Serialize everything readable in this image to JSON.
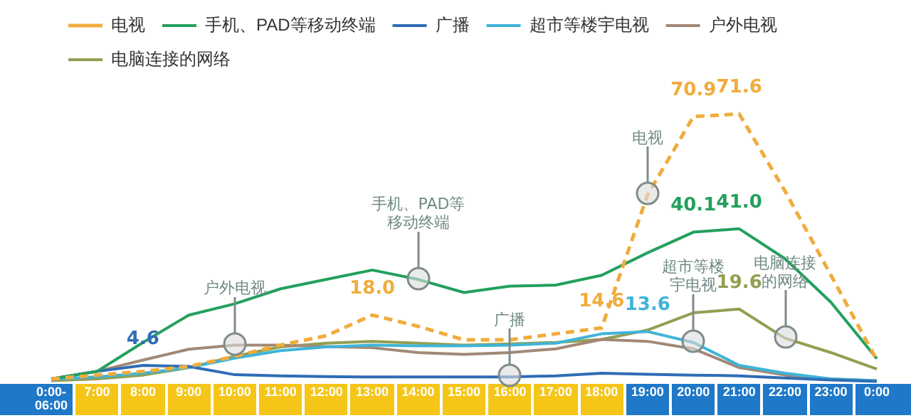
{
  "chart_data": {
    "type": "line",
    "categories": [
      "0:00- 06:00",
      "7:00",
      "8:00",
      "9:00",
      "10:00",
      "11:00",
      "12:00",
      "13:00",
      "14:00",
      "15:00",
      "16:00",
      "17:00",
      "18:00",
      "19:00",
      "20:00",
      "21:00",
      "22:00",
      "23:00",
      "0:00"
    ],
    "series": [
      {
        "name": "电视",
        "color": "#f0ac3c",
        "line_style": "dashed",
        "values": [
          1,
          2,
          3,
          4.3,
          7,
          10,
          12.5,
          18.0,
          15,
          11.4,
          11.4,
          13,
          14.6,
          50,
          70.9,
          71.6,
          51,
          28.6,
          6
        ],
        "value_labels": [
          null,
          null,
          null,
          null,
          null,
          null,
          null,
          "18.0",
          null,
          null,
          null,
          null,
          "14.6",
          null,
          "70.9",
          "71.6",
          null,
          null,
          null
        ]
      },
      {
        "name": "手机、PAD等移动终端",
        "color": "#23a05e",
        "values": [
          1,
          3,
          10.7,
          18,
          21,
          25,
          27.5,
          30,
          27.5,
          24,
          25.7,
          26,
          28.6,
          34.6,
          40.1,
          41.0,
          33,
          21.4,
          6.4
        ],
        "value_labels": [
          null,
          null,
          null,
          null,
          null,
          null,
          null,
          null,
          null,
          null,
          null,
          null,
          null,
          null,
          "40.1",
          "41.0",
          null,
          null,
          null
        ]
      },
      {
        "name": "广播",
        "color": "#2f6db5",
        "values": [
          1,
          3,
          4.6,
          4.3,
          2.1,
          1.8,
          1.6,
          1.5,
          1.5,
          1.5,
          1.5,
          1.8,
          2.5,
          2.2,
          2,
          1.8,
          1.2,
          0.7,
          0.3
        ],
        "value_labels": [
          null,
          null,
          "4.6",
          null,
          null,
          null,
          null,
          null,
          null,
          null,
          null,
          null,
          null,
          null,
          null,
          null,
          null,
          null,
          null
        ]
      },
      {
        "name": "超市等楼宇电视",
        "color": "#3fb4d8",
        "values": [
          1,
          1.5,
          2.5,
          4,
          6.5,
          8.5,
          9.5,
          10,
          9.8,
          9.8,
          10,
          10.5,
          13,
          13.6,
          10.7,
          4.6,
          2.5,
          1,
          0.5
        ],
        "value_labels": [
          null,
          null,
          null,
          null,
          null,
          null,
          null,
          null,
          null,
          null,
          null,
          null,
          null,
          "13.6",
          null,
          null,
          null,
          null,
          null
        ]
      },
      {
        "name": "户外电视",
        "color": "#a28876",
        "values": [
          1,
          3,
          6,
          8.9,
          10,
          10,
          9.6,
          9.3,
          8,
          7.5,
          8,
          9,
          11.5,
          11,
          9,
          4,
          2,
          1,
          0.5
        ]
      },
      {
        "name": "电脑连接的网络",
        "color": "#929f52",
        "values": [
          0.5,
          1,
          2,
          4,
          7,
          9.5,
          10.5,
          11,
          10.5,
          10,
          10.3,
          10.7,
          11.5,
          14,
          18.6,
          19.6,
          11.8,
          8,
          3.6
        ],
        "value_labels": [
          null,
          null,
          null,
          null,
          null,
          null,
          null,
          null,
          null,
          null,
          null,
          null,
          null,
          null,
          null,
          "19.6",
          null,
          null,
          null
        ]
      }
    ],
    "tick_labels": "x",
    "grid": false,
    "legend": "top",
    "marker": "none",
    "annotations": [
      {
        "text": "户外电视",
        "x": "10:00",
        "y": 10
      },
      {
        "text": "手机、PAD等移动终端",
        "x": "14:00",
        "y": 27.5
      },
      {
        "text": "广播",
        "x": "16:00",
        "y": 1.5
      },
      {
        "text": "电视",
        "x": "19:00",
        "y": 50
      },
      {
        "text": "超市等楼宇电视",
        "x": "20:00",
        "y": 10.7
      },
      {
        "text": "电脑连接的网络",
        "x": "22:00",
        "y": 11.8
      }
    ]
  }
}
